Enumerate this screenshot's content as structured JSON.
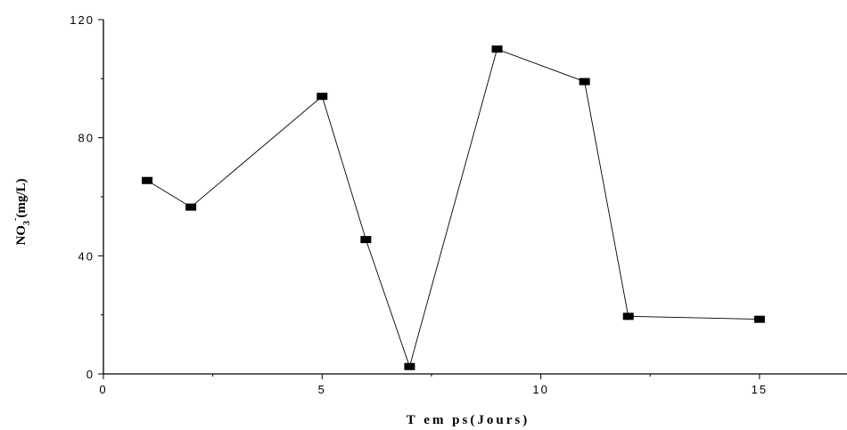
{
  "chart_data": {
    "type": "line",
    "title": "",
    "xlabel": "T em ps(Jours)",
    "ylabel": {
      "main": "NO",
      "subscript": "3",
      "superscript": "-",
      "unit": "(mg/L)"
    },
    "xlim": [
      0,
      17
    ],
    "ylim": [
      0,
      120
    ],
    "x_ticks": [
      0,
      5,
      10,
      15
    ],
    "y_ticks": [
      0,
      40,
      80,
      120
    ],
    "grid": false,
    "legend": "none",
    "series": [
      {
        "marker": "square",
        "color": "#000000",
        "x": [
          1,
          2,
          5,
          6,
          7,
          9,
          11,
          12,
          15
        ],
        "y": [
          65.5,
          56.5,
          94,
          45.5,
          2.5,
          110,
          99,
          19.5,
          18.5
        ]
      }
    ]
  }
}
